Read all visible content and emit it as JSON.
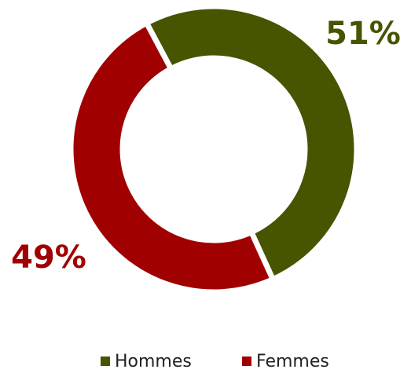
{
  "chart_data": {
    "type": "donut",
    "categories": [
      "Hommes",
      "Femmes"
    ],
    "values": [
      51,
      49
    ],
    "value_labels": [
      "51%",
      "49%"
    ],
    "colors": [
      "#475400",
      "#a00000"
    ],
    "legend": "bottom"
  }
}
